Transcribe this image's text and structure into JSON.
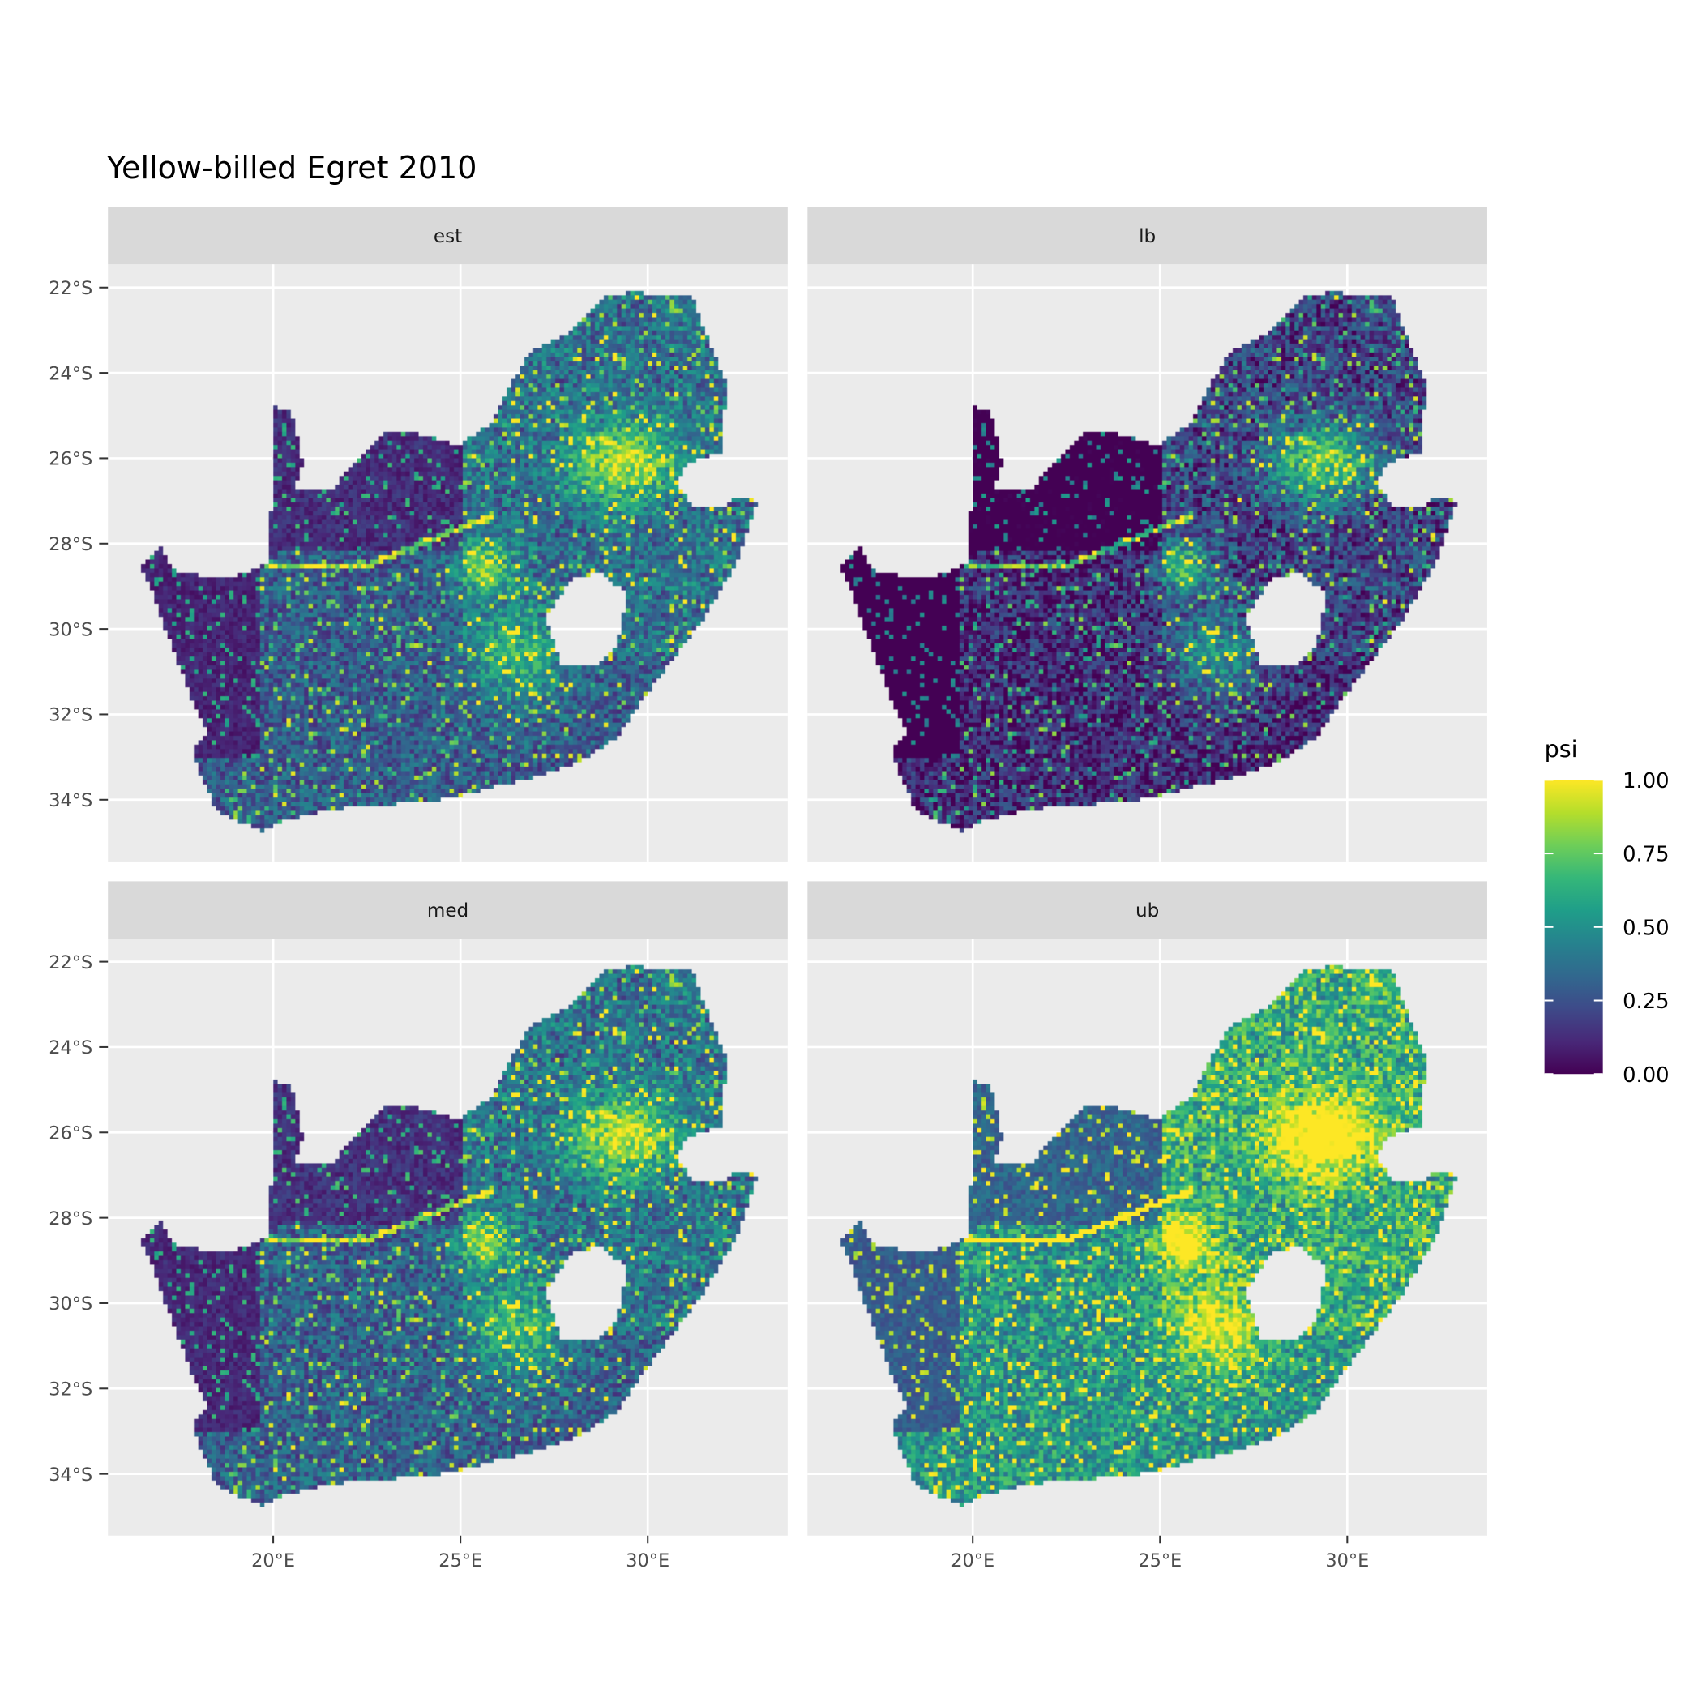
{
  "chart_data": {
    "type": "heatmap",
    "title": "Yellow-billed Egret 2010",
    "panels": [
      "est",
      "lb",
      "med",
      "ub"
    ],
    "panel_brightness_shift": {
      "est": 0.0,
      "lb": -0.2,
      "med": 0.02,
      "ub": 0.28
    },
    "x_ticks": [
      "20°E",
      "25°E",
      "30°E"
    ],
    "x_tick_values": [
      20,
      25,
      30
    ],
    "y_ticks": [
      "22°S",
      "24°S",
      "26°S",
      "28°S",
      "30°S",
      "32°S",
      "34°S"
    ],
    "y_tick_values": [
      -22,
      -24,
      -26,
      -28,
      -30,
      -32,
      -34
    ],
    "xlim": [
      15.6,
      33.7
    ],
    "ylim": [
      -35.45,
      -21.46
    ],
    "legend": {
      "title": "psi",
      "labels": [
        "1.00",
        "0.75",
        "0.50",
        "0.25",
        "0.00"
      ],
      "range": [
        0,
        1
      ],
      "colormap": "viridis",
      "placement": "right"
    },
    "colors": {
      "panel_bg": "#ebebeb",
      "strip_bg": "#d9d9d9",
      "grid": "#ffffff",
      "viridis": [
        "#440154",
        "#482878",
        "#3e4a89",
        "#31688e",
        "#26828e",
        "#1f9e89",
        "#35b779",
        "#6ece58",
        "#b5de2b",
        "#fde725"
      ]
    }
  }
}
